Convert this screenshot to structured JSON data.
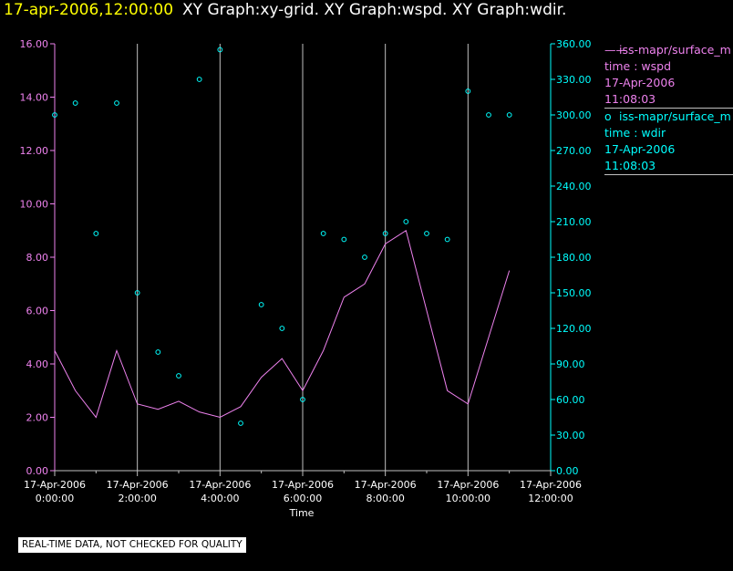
{
  "header": {
    "date": "17-apr-2006,12:00:00",
    "graphs": "XY Graph:xy-grid.  XY Graph:wspd.  XY Graph:wdir."
  },
  "legend": {
    "wspd": {
      "source": "iss-mapr/surface_m",
      "var": "time : wspd",
      "date": "17-Apr-2006",
      "time": "11:08:03",
      "marker": "——"
    },
    "wdir": {
      "source": "iss-mapr/surface_m",
      "var": "time : wdir",
      "date": "17-Apr-2006",
      "time": "11:08:03",
      "marker": "o"
    }
  },
  "footer_note": "REAL-TIME DATA, NOT CHECKED FOR QUALITY",
  "colors": {
    "background": "#000000",
    "wspd": "#ee82ee",
    "wdir": "#00ffff",
    "left_axis": "#ee82ee",
    "right_axis": "#00ffff",
    "grid": "#c0c0c0",
    "title_date": "#ffff00",
    "title_text": "#ffffff"
  },
  "chart_data": {
    "type": "line",
    "xlabel": "Time",
    "x_range_hours": [
      0,
      12
    ],
    "x_ticks": [
      {
        "date": "17-Apr-2006",
        "time": "0:00:00",
        "hour": 0
      },
      {
        "date": "17-Apr-2006",
        "time": "2:00:00",
        "hour": 2
      },
      {
        "date": "17-Apr-2006",
        "time": "4:00:00",
        "hour": 4
      },
      {
        "date": "17-Apr-2006",
        "time": "6:00:00",
        "hour": 6
      },
      {
        "date": "17-Apr-2006",
        "time": "8:00:00",
        "hour": 8
      },
      {
        "date": "17-Apr-2006",
        "time": "10:00:00",
        "hour": 10
      },
      {
        "date": "17-Apr-2006",
        "time": "12:00:00",
        "hour": 12
      }
    ],
    "left_axis": {
      "range": [
        0,
        16
      ],
      "ticks": [
        "0.00",
        "2.00",
        "4.00",
        "6.00",
        "8.00",
        "10.00",
        "12.00",
        "14.00",
        "16.00"
      ]
    },
    "right_axis": {
      "range": [
        0,
        360
      ],
      "ticks": [
        "0.00",
        "30.00",
        "60.00",
        "90.00",
        "120.00",
        "150.00",
        "180.00",
        "210.00",
        "240.00",
        "270.00",
        "300.00",
        "330.00",
        "360.00"
      ]
    },
    "grid": "vertical",
    "series": [
      {
        "name": "time : wspd",
        "type": "line",
        "axis": "left",
        "x_hours": [
          0,
          0.5,
          1,
          1.5,
          2,
          2.5,
          3,
          3.5,
          4,
          4.5,
          5,
          5.5,
          6,
          6.5,
          7,
          7.5,
          8,
          8.5,
          9,
          9.5,
          10,
          10.5,
          11
        ],
        "values": [
          4.5,
          3.0,
          2.0,
          4.5,
          2.5,
          2.3,
          2.6,
          2.2,
          2.0,
          2.4,
          3.5,
          4.2,
          3.0,
          4.5,
          6.5,
          7.0,
          8.5,
          9.0,
          6.0,
          3.0,
          2.5,
          5.0,
          7.5
        ]
      },
      {
        "name": "time : wdir",
        "type": "scatter",
        "axis": "right",
        "x_hours": [
          0,
          0.5,
          1,
          1.5,
          2,
          2.5,
          3,
          3.5,
          4,
          4.5,
          5,
          5.5,
          6,
          6.5,
          7,
          7.5,
          8,
          8.5,
          9,
          9.5,
          10,
          10.5,
          11
        ],
        "values": [
          300,
          310,
          200,
          310,
          150,
          100,
          80,
          330,
          355,
          40,
          140,
          120,
          60,
          200,
          195,
          180,
          200,
          210,
          200,
          195,
          320,
          300,
          300
        ]
      }
    ]
  }
}
